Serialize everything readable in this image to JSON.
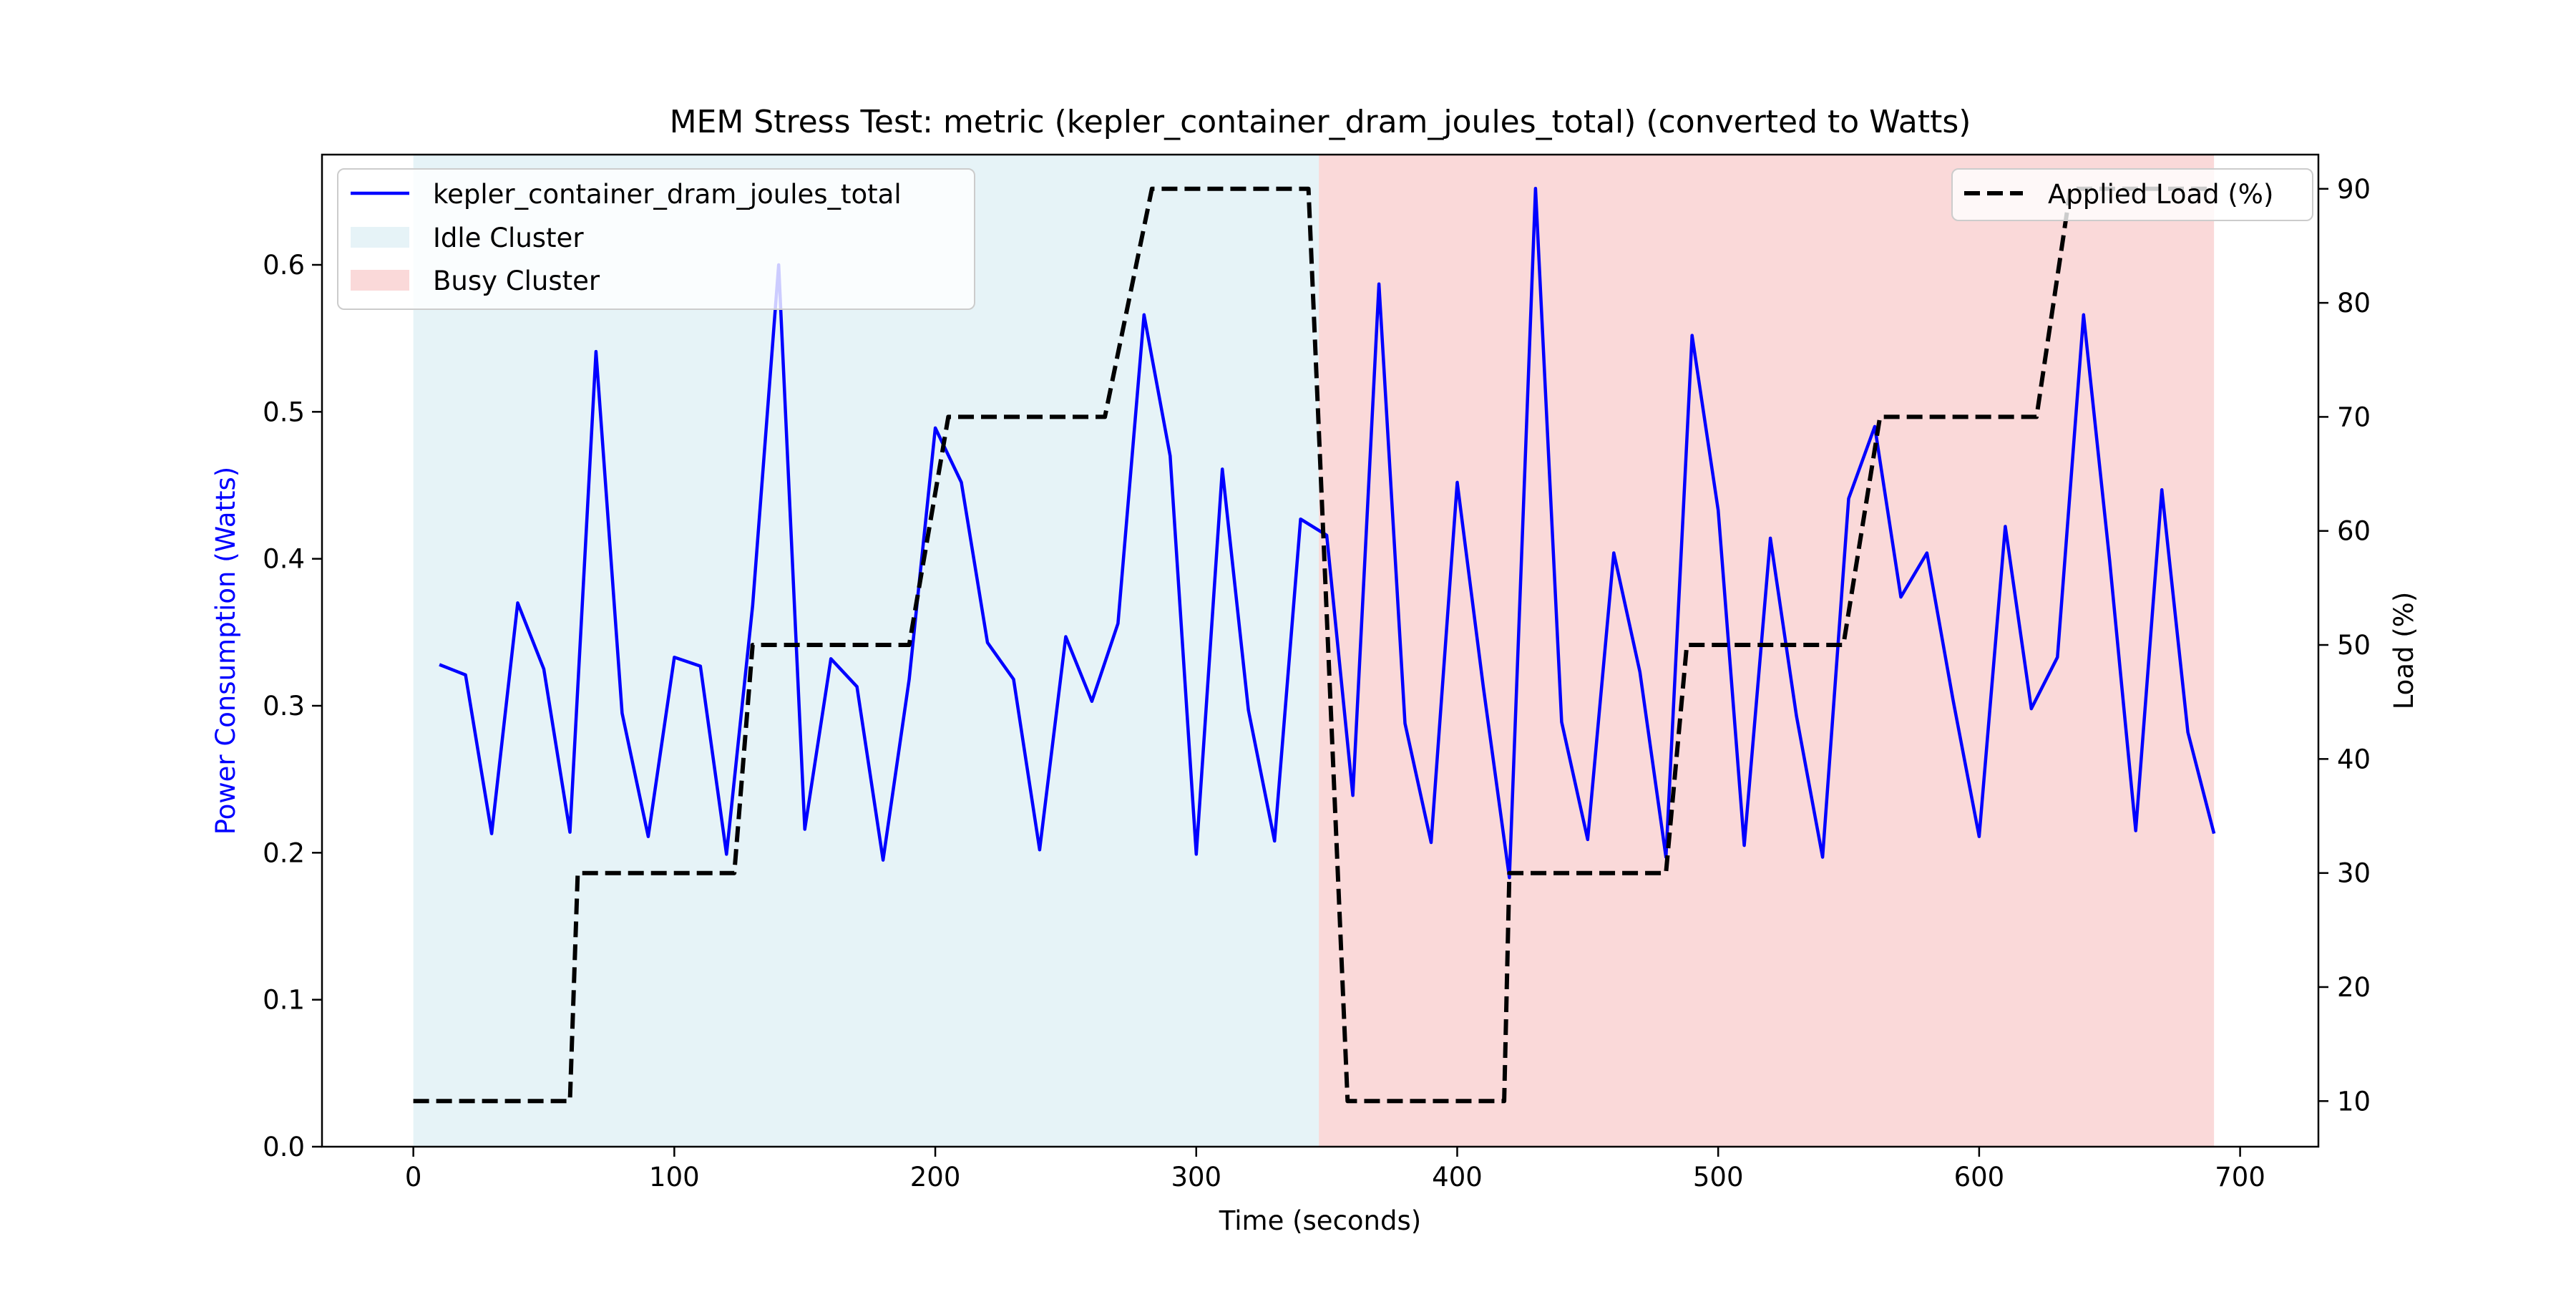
{
  "chart_data": {
    "type": "line",
    "title": "MEM Stress Test: metric (kepler_container_dram_joules_total) (converted to Watts)",
    "xlabel": "Time (seconds)",
    "ylabel_left": "Power Consumption (Watts)",
    "ylabel_right": "Load (%)",
    "xlim": [
      -35,
      730
    ],
    "ylim_left": [
      0,
      0.675
    ],
    "ylim_right": [
      6,
      93
    ],
    "x_ticks": [
      0,
      100,
      200,
      300,
      400,
      500,
      600,
      700
    ],
    "y_left_ticks": [
      0.0,
      0.1,
      0.2,
      0.3,
      0.4,
      0.5,
      0.6
    ],
    "y_right_ticks": [
      10,
      20,
      30,
      40,
      50,
      60,
      70,
      80,
      90
    ],
    "grid": false,
    "regions": [
      {
        "name": "Idle Cluster",
        "x_start": 0,
        "x_end": 347,
        "color": "#add8e6"
      },
      {
        "name": "Busy Cluster",
        "x_start": 347,
        "x_end": 690,
        "color": "#f08080"
      }
    ],
    "series": [
      {
        "name": "kepler_container_dram_joules_total",
        "axis": "left",
        "color": "#0000ff",
        "style": "solid",
        "x": [
          10,
          20,
          30,
          40,
          50,
          60,
          70,
          80,
          90,
          100,
          110,
          120,
          130,
          140,
          150,
          160,
          170,
          180,
          190,
          200,
          210,
          220,
          230,
          240,
          250,
          260,
          270,
          280,
          290,
          300,
          310,
          320,
          330,
          340,
          350,
          360,
          370,
          380,
          390,
          400,
          410,
          420,
          430,
          440,
          450,
          460,
          470,
          480,
          490,
          500,
          510,
          520,
          530,
          540,
          550,
          560,
          570,
          580,
          590,
          600,
          610,
          620,
          630,
          640,
          650,
          660,
          670,
          680,
          690
        ],
        "y": [
          0.328,
          0.321,
          0.213,
          0.37,
          0.325,
          0.214,
          0.541,
          0.295,
          0.211,
          0.333,
          0.327,
          0.199,
          0.368,
          0.6,
          0.216,
          0.332,
          0.313,
          0.195,
          0.318,
          0.489,
          0.452,
          0.343,
          0.318,
          0.202,
          0.347,
          0.303,
          0.356,
          0.566,
          0.47,
          0.199,
          0.461,
          0.297,
          0.208,
          0.427,
          0.416,
          0.239,
          0.587,
          0.288,
          0.207,
          0.452,
          0.313,
          0.183,
          0.652,
          0.289,
          0.209,
          0.404,
          0.323,
          0.197,
          0.552,
          0.433,
          0.205,
          0.414,
          0.293,
          0.197,
          0.441,
          0.49,
          0.374,
          0.404,
          0.304,
          0.211,
          0.422,
          0.298,
          0.333,
          0.566,
          0.399,
          0.215,
          0.447,
          0.282,
          0.213
        ]
      },
      {
        "name": "Applied Load (%)",
        "axis": "right",
        "color": "#000000",
        "style": "dashed",
        "x": [
          0,
          60,
          63,
          123,
          130,
          190,
          205,
          265,
          283,
          343,
          358,
          418,
          420,
          480,
          488,
          548,
          562,
          622,
          635,
          690
        ],
        "y": [
          10,
          10,
          30,
          30,
          50,
          50,
          70,
          70,
          90,
          90,
          10,
          10,
          30,
          30,
          50,
          50,
          70,
          70,
          90,
          90
        ]
      }
    ],
    "legend_left": {
      "placement": "upper-left",
      "entries": [
        "kepler_container_dram_joules_total",
        "Idle Cluster",
        "Busy Cluster"
      ]
    },
    "legend_right": {
      "placement": "upper-right",
      "entries": [
        "Applied Load (%)"
      ]
    }
  }
}
